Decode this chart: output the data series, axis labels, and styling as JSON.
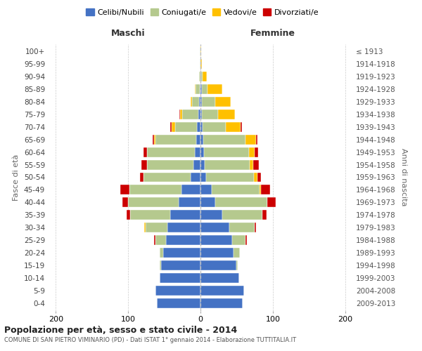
{
  "age_groups": [
    "0-4",
    "5-9",
    "10-14",
    "15-19",
    "20-24",
    "25-29",
    "30-34",
    "35-39",
    "40-44",
    "45-49",
    "50-54",
    "55-59",
    "60-64",
    "65-69",
    "70-74",
    "75-79",
    "80-84",
    "85-89",
    "90-94",
    "95-99",
    "100+"
  ],
  "birth_years": [
    "2009-2013",
    "2004-2008",
    "1999-2003",
    "1994-1998",
    "1989-1993",
    "1984-1988",
    "1979-1983",
    "1974-1978",
    "1969-1973",
    "1964-1968",
    "1959-1963",
    "1954-1958",
    "1949-1953",
    "1944-1948",
    "1939-1943",
    "1934-1938",
    "1929-1933",
    "1924-1928",
    "1919-1923",
    "1914-1918",
    "≤ 1913"
  ],
  "maschi": {
    "celibi": [
      60,
      62,
      56,
      54,
      52,
      48,
      46,
      42,
      30,
      26,
      14,
      10,
      8,
      6,
      5,
      3,
      2,
      1,
      0,
      0,
      0
    ],
    "coniugati": [
      0,
      0,
      0,
      2,
      4,
      14,
      30,
      55,
      70,
      72,
      65,
      64,
      66,
      56,
      30,
      22,
      10,
      6,
      2,
      1,
      1
    ],
    "vedovi": [
      0,
      0,
      0,
      0,
      0,
      0,
      2,
      0,
      0,
      0,
      0,
      0,
      0,
      2,
      5,
      3,
      2,
      1,
      0,
      0,
      0
    ],
    "divorziati": [
      0,
      0,
      0,
      0,
      0,
      2,
      0,
      5,
      8,
      13,
      5,
      8,
      5,
      2,
      2,
      1,
      0,
      0,
      0,
      0,
      0
    ]
  },
  "femmine": {
    "nubili": [
      58,
      60,
      53,
      50,
      46,
      44,
      40,
      30,
      20,
      16,
      8,
      6,
      5,
      4,
      3,
      2,
      2,
      2,
      1,
      0,
      0
    ],
    "coniugate": [
      0,
      0,
      0,
      2,
      8,
      18,
      35,
      56,
      72,
      66,
      66,
      62,
      62,
      58,
      32,
      22,
      18,
      8,
      2,
      0,
      0
    ],
    "vedove": [
      0,
      0,
      0,
      0,
      0,
      0,
      0,
      0,
      0,
      2,
      5,
      5,
      8,
      15,
      20,
      24,
      22,
      20,
      6,
      2,
      1
    ],
    "divorziate": [
      0,
      0,
      0,
      0,
      0,
      2,
      2,
      5,
      12,
      12,
      5,
      8,
      5,
      2,
      2,
      0,
      0,
      0,
      0,
      0,
      0
    ]
  },
  "colors": {
    "celibi_nubili": "#4472c4",
    "coniugati": "#b5c98e",
    "vedovi": "#ffc000",
    "divorziati": "#cc0000"
  },
  "legend_labels": [
    "Celibi/Nubili",
    "Coniugati/e",
    "Vedovi/e",
    "Divorziati/e"
  ],
  "title": "Popolazione per età, sesso e stato civile - 2014",
  "subtitle": "COMUNE DI SAN PIETRO VIMINARIO (PD) - Dati ISTAT 1° gennaio 2014 - Elaborazione TUTTITALIA.IT",
  "xlabel_left": "Maschi",
  "xlabel_right": "Femmine",
  "ylabel_left": "Fasce di età",
  "ylabel_right": "Anni di nascita",
  "xlim": [
    -210,
    210
  ],
  "xticks": [
    -200,
    -100,
    0,
    100,
    200
  ],
  "xticklabels": [
    "200",
    "100",
    "0",
    "100",
    "200"
  ],
  "background_color": "#ffffff",
  "grid_color": "#cccccc"
}
